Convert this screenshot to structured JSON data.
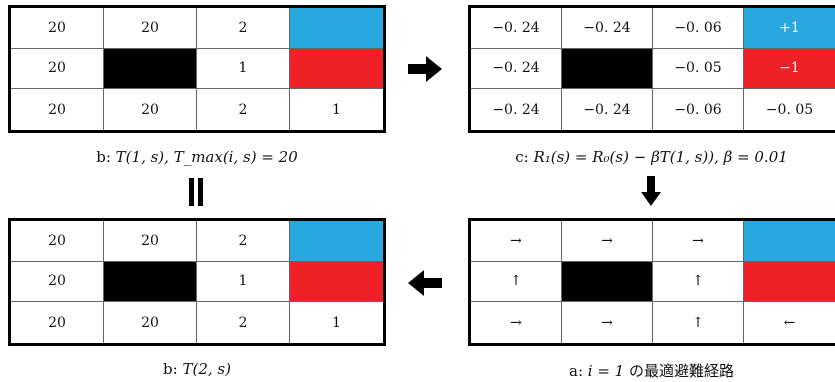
{
  "colors": {
    "goal": "#29a8e0",
    "trap": "#ed2127",
    "wall": "#000000"
  },
  "panels": {
    "top_left": {
      "rows": [
        [
          "20",
          "20",
          "2",
          ""
        ],
        [
          "20",
          "",
          "1",
          ""
        ],
        [
          "20",
          "20",
          "2",
          "1"
        ]
      ],
      "caption_prefix": "b: ",
      "caption_math": "T(1, s), T_max(i, s) = 20"
    },
    "top_right": {
      "rows": [
        [
          "−0. 24",
          "−0. 24",
          "−0. 06",
          "+1"
        ],
        [
          "−0. 24",
          "",
          "−0. 05",
          "−1"
        ],
        [
          "−0. 24",
          "−0. 24",
          "−0. 06",
          "−0. 05"
        ]
      ],
      "caption_prefix": "c: ",
      "caption_math": "R₁(s) = R₀(s) − βT(1, s)), β = 0.01"
    },
    "bottom_left": {
      "rows": [
        [
          "20",
          "20",
          "2",
          ""
        ],
        [
          "20",
          "",
          "1",
          ""
        ],
        [
          "20",
          "20",
          "2",
          "1"
        ]
      ],
      "caption_prefix": "b: ",
      "caption_math": "T(2, s)"
    },
    "bottom_right": {
      "rows": [
        [
          "→",
          "→",
          "→",
          ""
        ],
        [
          "↑",
          "",
          "↑",
          ""
        ],
        [
          "→",
          "→",
          "↑",
          "←"
        ]
      ],
      "caption_prefix": "a: ",
      "caption_math": "i = 1",
      "caption_suffix": " の最適避難経路"
    }
  }
}
